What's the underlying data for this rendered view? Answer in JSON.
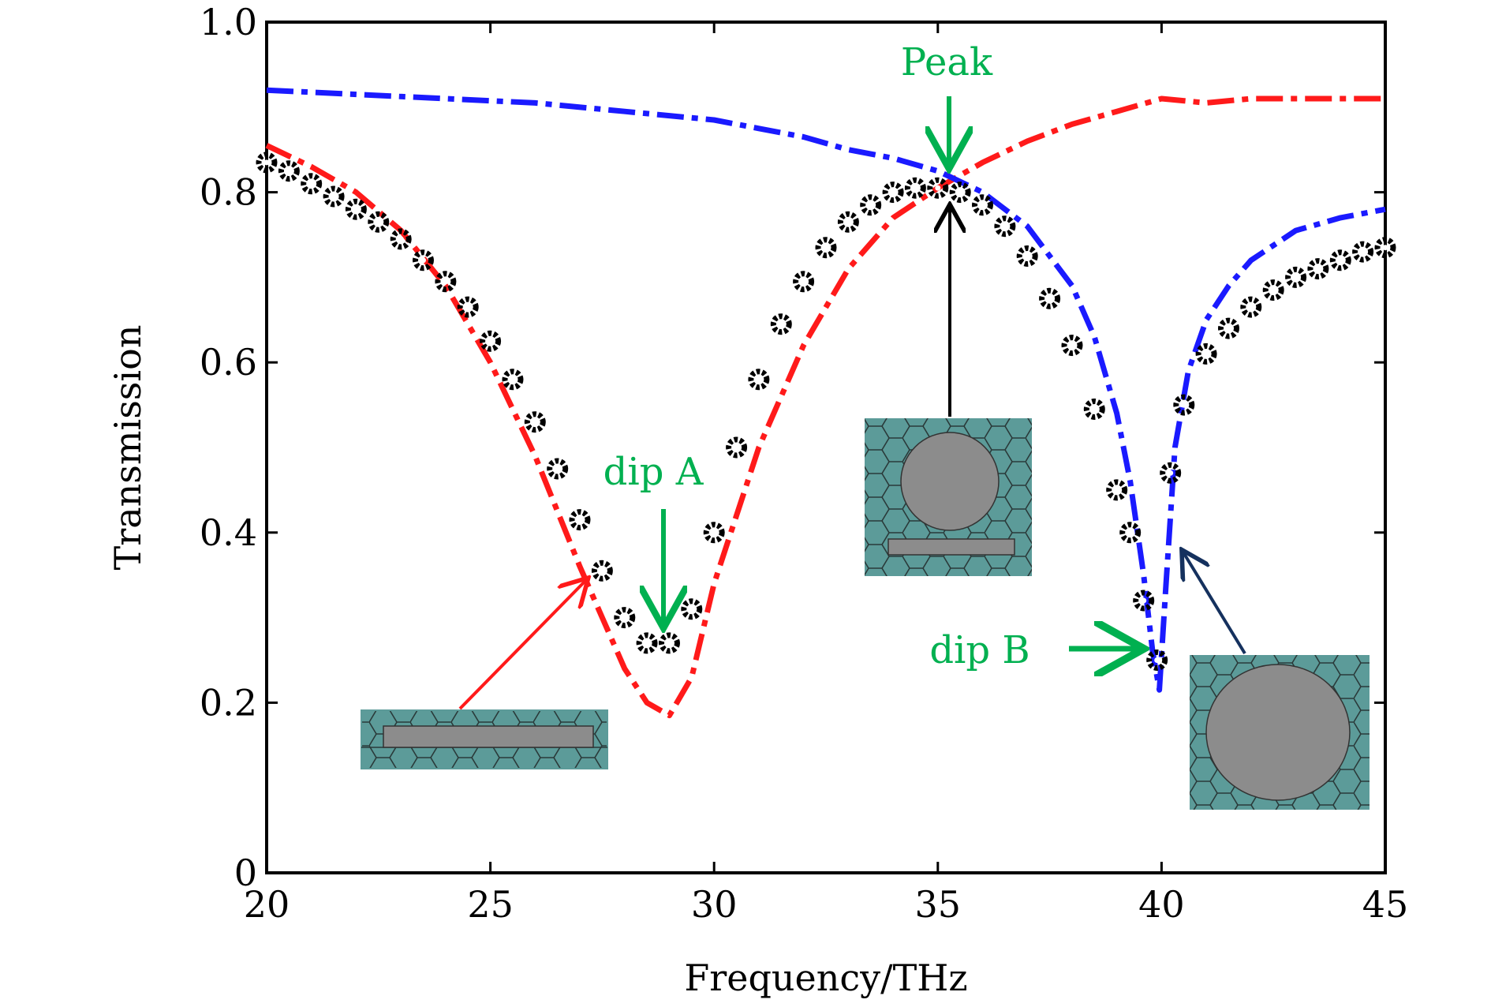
{
  "chart_data": {
    "type": "line",
    "title": "",
    "xlabel": "Frequency/THz",
    "ylabel": "Transmission",
    "xlim": [
      20,
      45
    ],
    "ylim": [
      0,
      1.0
    ],
    "xticks": [
      20,
      25,
      30,
      35,
      40,
      45
    ],
    "xtick_labels": [
      "20",
      "25",
      "30",
      "35",
      "40",
      "45"
    ],
    "yticks": [
      0,
      0.2,
      0.4,
      0.6,
      0.8,
      1.0
    ],
    "ytick_labels": [
      "0",
      "0.2",
      "0.4",
      "0.6",
      "0.8",
      "1.0"
    ],
    "grid": false,
    "series": [
      {
        "name": "horizontal bar structure",
        "style": "dash-dot",
        "color": "#ff1a1a",
        "x": [
          20,
          21,
          22,
          23,
          24,
          25,
          26,
          27,
          27.5,
          28,
          28.5,
          29,
          29.5,
          30,
          31,
          32,
          33,
          34,
          35,
          36,
          37,
          38,
          39,
          40,
          41,
          42,
          43,
          44,
          45
        ],
        "y": [
          0.855,
          0.83,
          0.8,
          0.755,
          0.69,
          0.6,
          0.49,
          0.36,
          0.3,
          0.24,
          0.2,
          0.185,
          0.23,
          0.34,
          0.5,
          0.62,
          0.71,
          0.77,
          0.805,
          0.835,
          0.86,
          0.88,
          0.895,
          0.91,
          0.905,
          0.91,
          0.91,
          0.91,
          0.91
        ]
      },
      {
        "name": "circular disk structure",
        "style": "dash-dot",
        "color": "#1a1aff",
        "x": [
          20,
          22,
          24,
          26,
          28,
          30,
          31,
          32,
          33,
          34,
          35,
          36,
          37,
          38,
          38.5,
          39,
          39.3,
          39.6,
          39.8,
          39.95,
          40.1,
          40.3,
          40.6,
          41,
          41.5,
          42,
          43,
          44,
          45
        ],
        "y": [
          0.92,
          0.915,
          0.91,
          0.905,
          0.895,
          0.885,
          0.875,
          0.865,
          0.85,
          0.84,
          0.825,
          0.8,
          0.76,
          0.69,
          0.63,
          0.54,
          0.46,
          0.35,
          0.26,
          0.215,
          0.34,
          0.5,
          0.59,
          0.65,
          0.69,
          0.72,
          0.755,
          0.77,
          0.78
        ]
      },
      {
        "name": "combined structure",
        "style": "markers",
        "color": "#000000",
        "x": [
          20,
          20.5,
          21,
          21.5,
          22,
          22.5,
          23,
          23.5,
          24,
          24.5,
          25,
          25.5,
          26,
          26.5,
          27,
          27.5,
          28,
          28.5,
          29,
          29.5,
          30,
          30.5,
          31,
          31.5,
          32,
          32.5,
          33,
          33.5,
          34,
          34.5,
          35,
          35.5,
          36,
          36.5,
          37,
          37.5,
          38,
          38.5,
          39,
          39.3,
          39.6,
          39.9,
          40.2,
          40.5,
          41,
          41.5,
          42,
          42.5,
          43,
          43.5,
          44,
          44.5,
          45
        ],
        "y": [
          0.835,
          0.825,
          0.81,
          0.795,
          0.78,
          0.765,
          0.745,
          0.72,
          0.695,
          0.665,
          0.625,
          0.58,
          0.53,
          0.475,
          0.415,
          0.355,
          0.3,
          0.27,
          0.27,
          0.31,
          0.4,
          0.5,
          0.58,
          0.645,
          0.695,
          0.735,
          0.765,
          0.785,
          0.8,
          0.805,
          0.805,
          0.8,
          0.785,
          0.76,
          0.725,
          0.675,
          0.62,
          0.545,
          0.45,
          0.4,
          0.32,
          0.25,
          0.47,
          0.55,
          0.61,
          0.64,
          0.665,
          0.685,
          0.7,
          0.71,
          0.72,
          0.73,
          0.735
        ]
      }
    ],
    "annotations": [
      {
        "text": "Peak",
        "color": "#00b050",
        "x": 35.2,
        "y": 0.82
      },
      {
        "text": "dip A",
        "color": "#00b050",
        "x": 28.9,
        "y": 0.285
      },
      {
        "text": "dip B",
        "color": "#00b050",
        "x": 39.7,
        "y": 0.26
      }
    ],
    "colors": {
      "annotation": "#00b050",
      "inset_fill": "#5c9b99",
      "inset_metal": "#8c8c8c",
      "blue_arrow": "#15315e"
    }
  }
}
